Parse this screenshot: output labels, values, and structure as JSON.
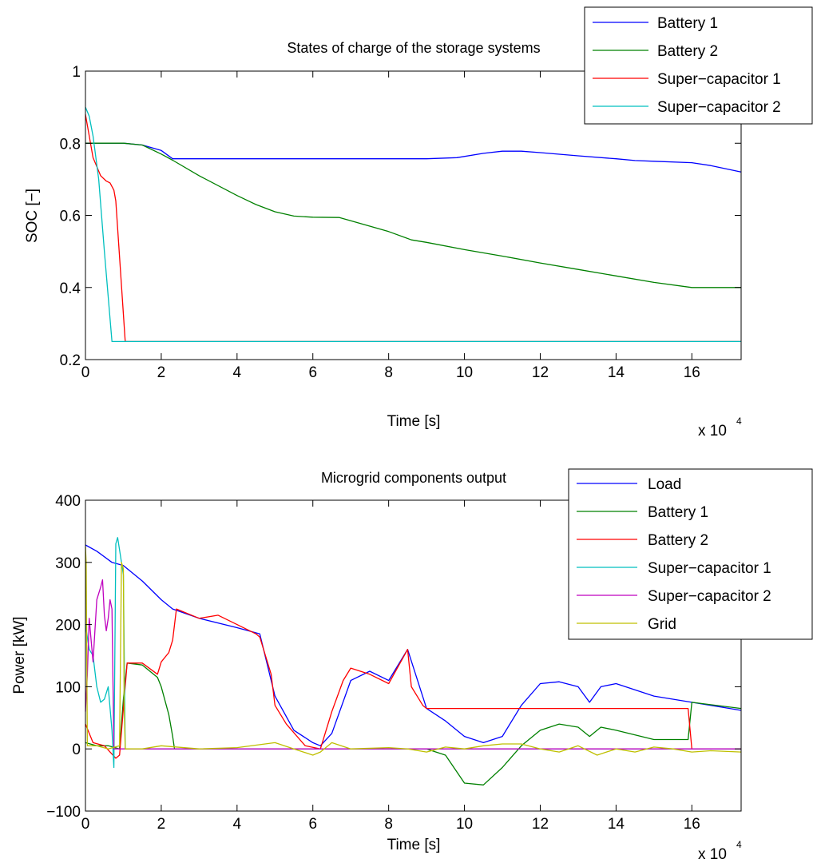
{
  "chart_data": [
    {
      "type": "line",
      "title": "States of charge of the storage systems",
      "xlabel": "Time [s]",
      "ylabel": "SOC [−]",
      "x_exponent_base": "x 10",
      "x_exponent_power": "4",
      "xlim": [
        0,
        17.3
      ],
      "ylim": [
        0.2,
        1.0
      ],
      "x_ticks": [
        0,
        2,
        4,
        6,
        8,
        10,
        12,
        14,
        16
      ],
      "x_tick_labels": [
        "0",
        "2",
        "4",
        "6",
        "8",
        "10",
        "12",
        "14",
        "16"
      ],
      "y_ticks": [
        0.2,
        0.4,
        0.6,
        0.8,
        1.0
      ],
      "y_tick_labels": [
        "0.2",
        "0.4",
        "0.6",
        "0.8",
        "1"
      ],
      "grid": false,
      "legend_position": "top-right",
      "series": [
        {
          "name": "Battery 1",
          "color": "#0000ff",
          "x": [
            0,
            0.3,
            0.6,
            1.0,
            1.5,
            2.0,
            2.3,
            3.0,
            5.0,
            7.0,
            9.0,
            9.8,
            10.5,
            11.0,
            11.5,
            12.0,
            13.0,
            14.0,
            14.5,
            15.0,
            16.0,
            16.5,
            17.3
          ],
          "y": [
            0.8,
            0.8,
            0.8,
            0.8,
            0.795,
            0.78,
            0.757,
            0.757,
            0.757,
            0.757,
            0.757,
            0.76,
            0.772,
            0.778,
            0.778,
            0.774,
            0.765,
            0.757,
            0.752,
            0.75,
            0.746,
            0.738,
            0.72
          ]
        },
        {
          "name": "Battery 2",
          "color": "#008000",
          "x": [
            0,
            0.3,
            0.6,
            1.0,
            1.5,
            2.0,
            2.3,
            3.0,
            4.0,
            4.5,
            5.0,
            5.5,
            6.0,
            6.7,
            7.0,
            8.0,
            8.6,
            9.0,
            10.0,
            11.0,
            12.0,
            13.0,
            14.0,
            15.0,
            16.0,
            17.3
          ],
          "y": [
            0.8,
            0.8,
            0.8,
            0.8,
            0.795,
            0.77,
            0.753,
            0.71,
            0.655,
            0.63,
            0.61,
            0.598,
            0.595,
            0.594,
            0.585,
            0.555,
            0.532,
            0.525,
            0.505,
            0.487,
            0.468,
            0.45,
            0.432,
            0.414,
            0.4,
            0.4
          ]
        },
        {
          "name": "Super−capacitor 1",
          "color": "#ff0000",
          "x": [
            0,
            0.2,
            0.4,
            0.55,
            0.65,
            0.75,
            0.8,
            1.05,
            17.3
          ],
          "y": [
            0.88,
            0.76,
            0.71,
            0.695,
            0.69,
            0.67,
            0.64,
            0.25,
            0.25
          ]
        },
        {
          "name": "Super−capacitor 2",
          "color": "#00bfbf",
          "x": [
            0,
            0.1,
            0.2,
            0.35,
            0.5,
            0.7,
            17.3
          ],
          "y": [
            0.9,
            0.875,
            0.82,
            0.7,
            0.5,
            0.25,
            0.25
          ]
        }
      ]
    },
    {
      "type": "line",
      "title": "Microgrid components output",
      "xlabel": "Time [s]",
      "ylabel": "Power [kW]",
      "x_exponent_base": "x 10",
      "x_exponent_power": "4",
      "xlim": [
        0,
        17.3
      ],
      "ylim": [
        -100,
        400
      ],
      "x_ticks": [
        0,
        2,
        4,
        6,
        8,
        10,
        12,
        14,
        16
      ],
      "x_tick_labels": [
        "0",
        "2",
        "4",
        "6",
        "8",
        "10",
        "12",
        "14",
        "16"
      ],
      "y_ticks": [
        -100,
        0,
        100,
        200,
        300,
        400
      ],
      "y_tick_labels": [
        "−100",
        "0",
        "100",
        "200",
        "300",
        "400"
      ],
      "grid": false,
      "legend_position": "top-right",
      "series": [
        {
          "name": "Load",
          "color": "#0000ff",
          "x": [
            0,
            0.3,
            0.7,
            1.0,
            1.5,
            2.0,
            2.3,
            3.0,
            4.0,
            4.6,
            5.0,
            5.5,
            6.0,
            6.2,
            6.5,
            7.0,
            7.5,
            8.0,
            8.5,
            9.0,
            9.5,
            10.0,
            10.5,
            11.0,
            11.5,
            12.0,
            12.5,
            13.0,
            13.3,
            13.6,
            14.0,
            15.0,
            16.0,
            16.5,
            17.0,
            17.3
          ],
          "y": [
            328,
            318,
            300,
            295,
            270,
            240,
            225,
            210,
            195,
            185,
            85,
            30,
            10,
            5,
            25,
            110,
            125,
            110,
            160,
            65,
            45,
            20,
            10,
            20,
            70,
            105,
            108,
            100,
            75,
            100,
            105,
            85,
            75,
            70,
            65,
            62
          ]
        },
        {
          "name": "Battery 1",
          "color": "#008000",
          "x": [
            0,
            0.3,
            0.6,
            0.9,
            1.0,
            1.1,
            1.5,
            1.9,
            2.0,
            2.2,
            2.3,
            2.35,
            4.6,
            9.0,
            9.5,
            10.0,
            10.5,
            11.0,
            11.5,
            12.0,
            12.5,
            13.0,
            13.3,
            13.6,
            14.0,
            15.0,
            15.9,
            16.0,
            17.3
          ],
          "y": [
            10,
            5,
            5,
            0,
            80,
            138,
            135,
            115,
            100,
            55,
            20,
            0,
            0,
            0,
            -10,
            -55,
            -58,
            -30,
            5,
            30,
            40,
            35,
            20,
            35,
            30,
            15,
            15,
            75,
            65
          ]
        },
        {
          "name": "Battery 2",
          "color": "#ff0000",
          "x": [
            0,
            0.2,
            0.5,
            0.8,
            0.9,
            1.1,
            1.5,
            1.9,
            2.0,
            2.2,
            2.3,
            2.4,
            3.0,
            3.5,
            4.0,
            4.5,
            4.6,
            4.9,
            5.0,
            5.3,
            5.8,
            6.2,
            6.5,
            6.8,
            7.0,
            7.5,
            8.0,
            8.5,
            8.6,
            8.9,
            9.0,
            15.9,
            16.0,
            17.3
          ],
          "y": [
            40,
            10,
            5,
            -15,
            -10,
            138,
            138,
            120,
            140,
            155,
            175,
            225,
            210,
            215,
            200,
            185,
            180,
            120,
            70,
            40,
            5,
            0,
            60,
            110,
            130,
            120,
            105,
            160,
            100,
            70,
            65,
            65,
            0,
            0
          ]
        },
        {
          "name": "Super−capacitor 1",
          "color": "#00bfbf",
          "x": [
            0,
            0.1,
            0.2,
            0.3,
            0.4,
            0.5,
            0.6,
            0.7,
            0.75,
            0.8,
            0.85,
            0.9,
            1.0,
            1.05,
            17.3
          ],
          "y": [
            200,
            160,
            150,
            100,
            75,
            80,
            100,
            30,
            -30,
            330,
            340,
            320,
            280,
            0,
            0
          ]
        },
        {
          "name": "Super−capacitor 2",
          "color": "#bf00bf",
          "x": [
            0,
            0.05,
            0.1,
            0.2,
            0.3,
            0.4,
            0.45,
            0.5,
            0.55,
            0.6,
            0.65,
            0.7,
            0.75,
            17.3
          ],
          "y": [
            60,
            120,
            210,
            140,
            240,
            260,
            272,
            215,
            190,
            210,
            240,
            225,
            0,
            0
          ]
        },
        {
          "name": "Grid",
          "color": "#bfbf00",
          "x": [
            0,
            0.02,
            0.05,
            0.3,
            0.6,
            0.9,
            0.95,
            1.0,
            1.02,
            1.05,
            1.5,
            2.0,
            3.0,
            4.0,
            5.0,
            5.5,
            6.0,
            6.2,
            6.5,
            7.0,
            8.0,
            8.5,
            9.0,
            9.5,
            10.0,
            10.5,
            11.0,
            11.5,
            12.0,
            12.5,
            13.0,
            13.5,
            14.0,
            14.5,
            15.0,
            15.5,
            16.0,
            16.5,
            17.3
          ],
          "y": [
            325,
            300,
            5,
            5,
            0,
            5,
            300,
            290,
            80,
            0,
            0,
            5,
            0,
            2,
            10,
            0,
            -10,
            -5,
            10,
            0,
            2,
            0,
            -5,
            3,
            0,
            5,
            8,
            8,
            0,
            -5,
            5,
            -10,
            0,
            -5,
            3,
            0,
            -5,
            -3,
            -5
          ]
        }
      ]
    }
  ]
}
